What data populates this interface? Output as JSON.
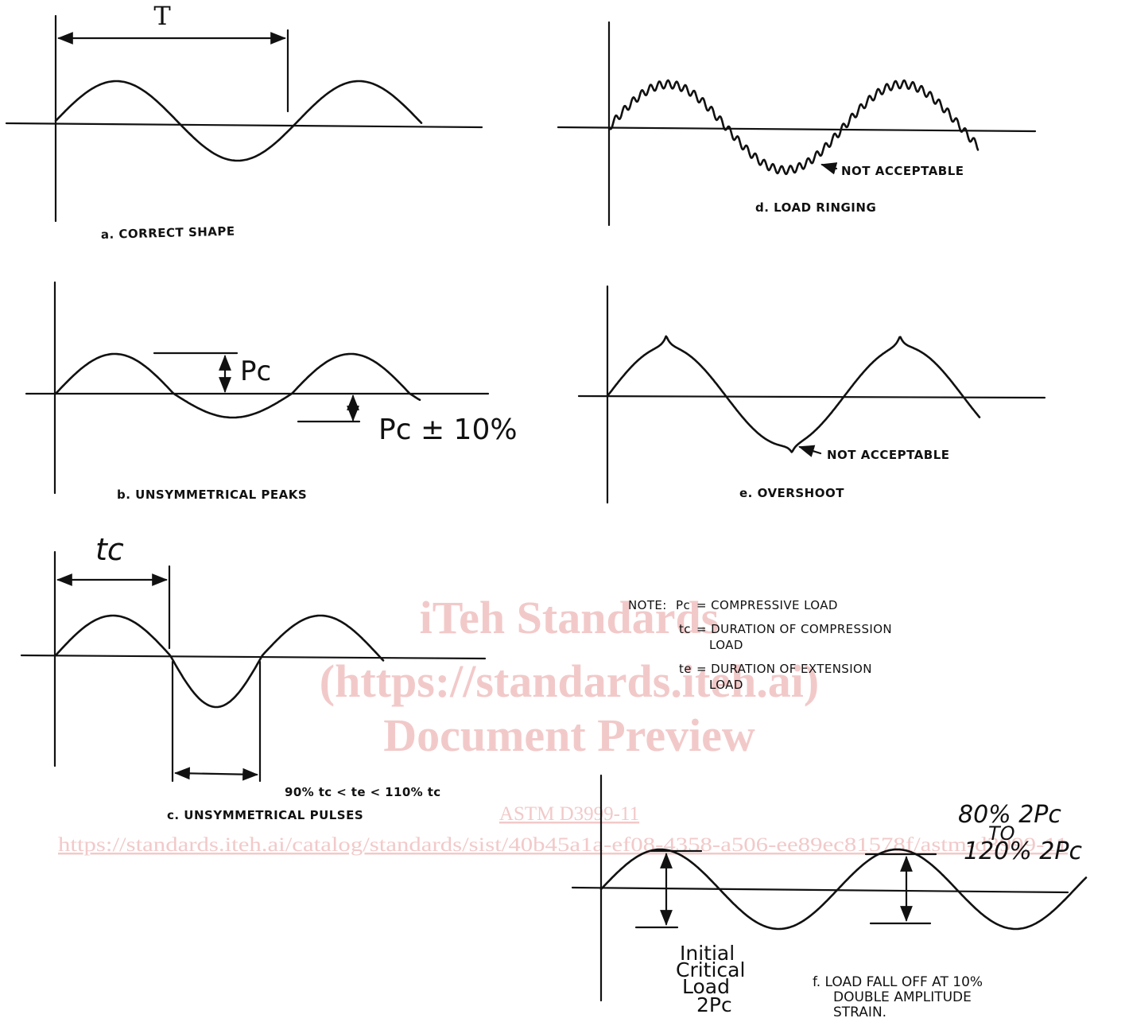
{
  "watermark": {
    "line1": "iTeh Standards",
    "line2": "(https://standards.iteh.ai)",
    "line3": "Document Preview",
    "standard": "ASTM D3999-11",
    "url": "https://standards.iteh.ai/catalog/standards/sist/40b45a1a-ef08-4358-a506-ee89ec81578f/astm-d3999-11"
  },
  "panels": {
    "a": {
      "caption": "a. CORRECT SHAPE",
      "period_label": "T"
    },
    "b": {
      "caption": "b. UNSYMMETRICAL PEAKS",
      "peak_label": "Pc",
      "trough_label": "Pc ± 10%"
    },
    "c": {
      "caption": "c. UNSYMMETRICAL PULSES",
      "tc_label": "tc",
      "range_label": "90% tc < te < 110% tc"
    },
    "d": {
      "caption": "d. LOAD RINGING",
      "annotation": "NOT ACCEPTABLE"
    },
    "e": {
      "caption": "e. OVERSHOOT",
      "annotation": "NOT ACCEPTABLE"
    },
    "f": {
      "caption_line1": "f. LOAD FALL OFF AT 10%",
      "caption_line2": "DOUBLE AMPLITUDE",
      "caption_line3": "STRAIN.",
      "left_label_line1": "Initial",
      "left_label_line2": "Critical",
      "left_label_line3": "Load",
      "left_label_line4": "2Pc",
      "right_label_line1": "80% 2Pc",
      "right_label_line2": "TO",
      "right_label_line3": "120% 2Pc"
    }
  },
  "note": {
    "prefix": "NOTE:",
    "pc_sym": "Pc",
    "pc_def": "= COMPRESSIVE LOAD",
    "tc_sym": "tc",
    "tc_def_1": "= DURATION OF COMPRESSION",
    "tc_def_2": "LOAD",
    "te_sym": "te",
    "te_def_1": "= DURATION OF EXTENSION",
    "te_def_2": "LOAD"
  }
}
